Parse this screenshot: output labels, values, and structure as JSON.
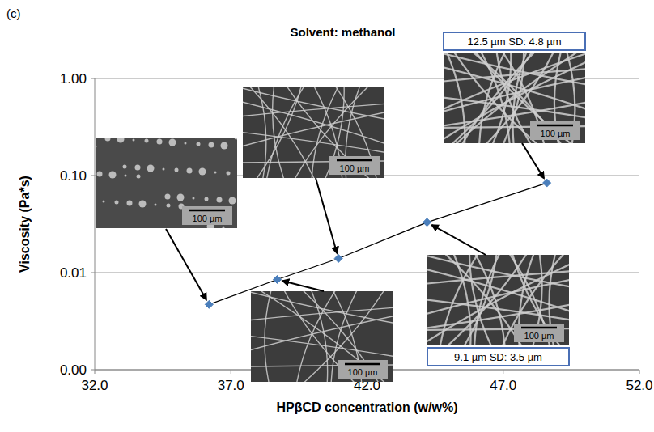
{
  "chart_data": {
    "type": "line",
    "panel_label": "(c)",
    "title": "Solvent: methanol",
    "x_label": "HPβCD concentration (w/w%)",
    "y_label": "Viscosity (Pa*s)",
    "x": [
      36.2,
      38.7,
      40.95,
      44.2,
      48.6
    ],
    "values": [
      0.0047,
      0.0085,
      0.014,
      0.033,
      0.084
    ],
    "color": "#4a7ebb",
    "marker": "diamond",
    "line_style": "solid",
    "xlim": [
      32,
      52
    ],
    "xticks": [
      {
        "value": 32,
        "label": "32.0"
      },
      {
        "value": 37,
        "label": "37.0"
      },
      {
        "value": 42,
        "label": "42.0"
      },
      {
        "value": 47,
        "label": "47.0"
      },
      {
        "value": 52,
        "label": "52.0"
      }
    ],
    "ylim": [
      0.001,
      1
    ],
    "yticks": [
      {
        "value": 0.001,
        "label": "0.00"
      },
      {
        "value": 0.01,
        "label": "0.01"
      },
      {
        "value": 0.1,
        "label": "0.10"
      },
      {
        "value": 1,
        "label": "1.00"
      }
    ],
    "log": "y",
    "grid": true,
    "insets": [
      {
        "scale_bar": "100 µm"
      },
      {
        "scale_bar": "100 µm"
      },
      {
        "scale_bar": "100 µm"
      },
      {
        "scale_bar": "100 µm",
        "caption": "9.1 µm SD: 3.5 µm"
      },
      {
        "scale_bar": "100 µm",
        "caption": "12.5 µm SD: 4.8 µm"
      }
    ]
  }
}
